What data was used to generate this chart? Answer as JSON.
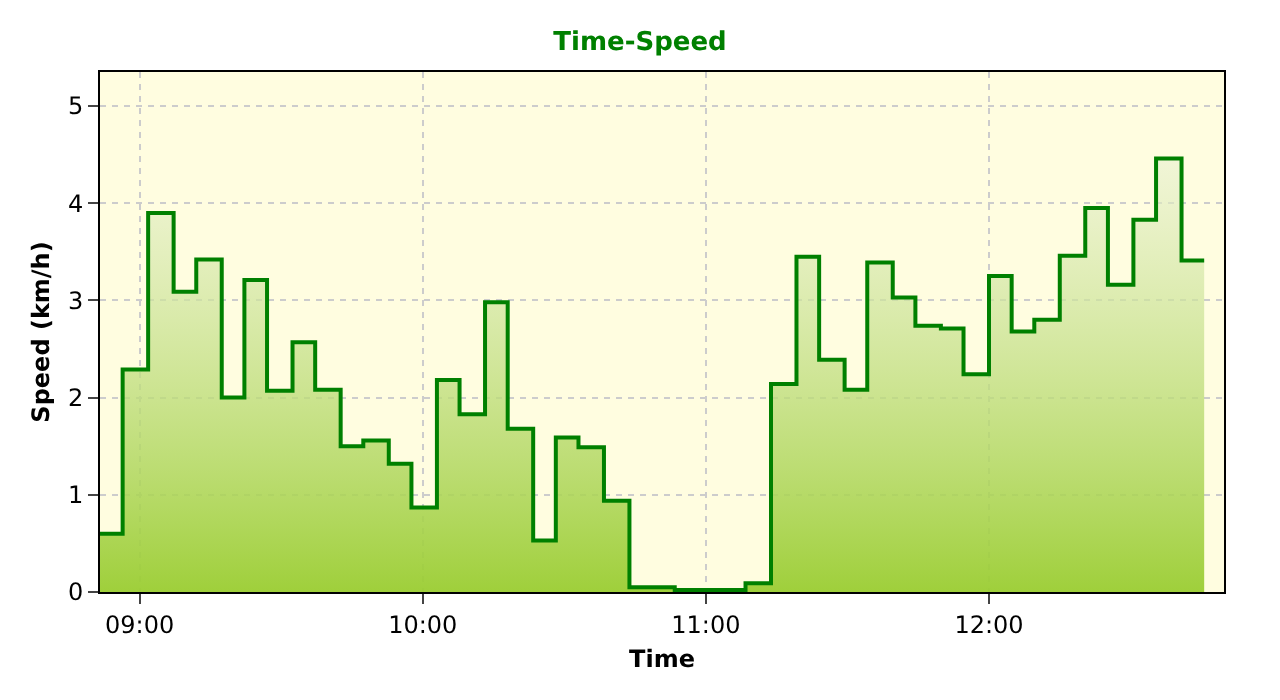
{
  "chart_data": {
    "type": "step",
    "title": "Time-Speed",
    "xlabel": "Time",
    "ylabel": "Speed (km/h)",
    "x": [
      8.86,
      8.94,
      9.03,
      9.12,
      9.2,
      9.29,
      9.37,
      9.45,
      9.54,
      9.62,
      9.71,
      9.79,
      9.88,
      9.96,
      10.05,
      10.13,
      10.22,
      10.3,
      10.39,
      10.47,
      10.55,
      10.64,
      10.73,
      10.89,
      11.14,
      11.23,
      11.32,
      11.4,
      11.49,
      11.57,
      11.66,
      11.74,
      11.83,
      11.91,
      12.0,
      12.08,
      12.16,
      12.25,
      12.34,
      12.42,
      12.51,
      12.59,
      12.68,
      12.76
    ],
    "series": [
      {
        "color": "#008000",
        "values": [
          0.6,
          2.29,
          3.9,
          3.09,
          3.42,
          2.0,
          3.21,
          2.07,
          2.57,
          2.08,
          1.5,
          1.56,
          1.32,
          0.87,
          2.18,
          1.83,
          2.98,
          1.68,
          0.53,
          1.59,
          1.49,
          0.94,
          0.05,
          0.02,
          0.09,
          2.14,
          3.45,
          2.39,
          2.08,
          3.39,
          3.03,
          2.74,
          2.71,
          2.24,
          3.25,
          2.68,
          2.8,
          3.46,
          3.95,
          3.16,
          3.83,
          4.46,
          3.41,
          3.41
        ]
      }
    ],
    "xlim": [
      8.86,
      12.83
    ],
    "xticks": [
      {
        "value": 9,
        "label": "09:00"
      },
      {
        "value": 10,
        "label": "10:00"
      },
      {
        "value": 11,
        "label": "11:00"
      },
      {
        "value": 12,
        "label": "12:00"
      }
    ],
    "ylim": [
      0,
      5.35
    ],
    "yticks": [
      0,
      1,
      2,
      3,
      4,
      5
    ],
    "grid": true,
    "marker": "none",
    "line_style": "solid"
  }
}
